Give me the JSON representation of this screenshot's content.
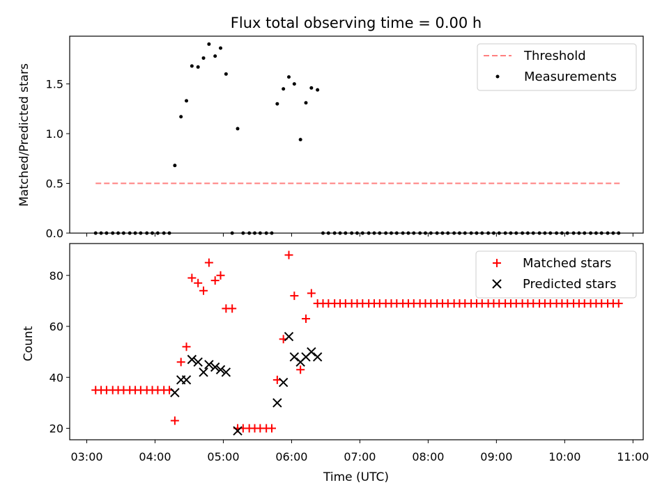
{
  "chart_data": [
    {
      "type": "scatter",
      "title": "Flux total observing time = 0.00 h",
      "ylabel": "Matched/Predicted stars",
      "xlabel": "",
      "ylim": [
        0,
        1.98
      ],
      "xlim": [
        2.75,
        11.15
      ],
      "yticks": [
        {
          "v": 0.0,
          "label": "0.0"
        },
        {
          "v": 0.5,
          "label": "0.5"
        },
        {
          "v": 1.0,
          "label": "1.0"
        },
        {
          "v": 1.5,
          "label": "1.5"
        }
      ],
      "threshold": {
        "name": "Threshold",
        "value": 0.5,
        "x_start": 3.13,
        "x_end": 10.83,
        "color": "#ff7f7f"
      },
      "series": [
        {
          "name": "Measurements",
          "color": "#000000",
          "points": [
            [
              3.13,
              0
            ],
            [
              3.21,
              0
            ],
            [
              3.29,
              0
            ],
            [
              3.38,
              0
            ],
            [
              3.46,
              0
            ],
            [
              3.54,
              0
            ],
            [
              3.63,
              0
            ],
            [
              3.71,
              0
            ],
            [
              3.79,
              0
            ],
            [
              3.88,
              0
            ],
            [
              3.96,
              0
            ],
            [
              4.04,
              0
            ],
            [
              4.13,
              0
            ],
            [
              4.21,
              0
            ],
            [
              4.29,
              0.68
            ],
            [
              4.38,
              1.17
            ],
            [
              4.46,
              1.33
            ],
            [
              4.54,
              1.68
            ],
            [
              4.63,
              1.67
            ],
            [
              4.71,
              1.76
            ],
            [
              4.79,
              1.9
            ],
            [
              4.88,
              1.78
            ],
            [
              4.96,
              1.86
            ],
            [
              5.04,
              1.6
            ],
            [
              5.13,
              0
            ],
            [
              5.21,
              1.05
            ],
            [
              5.29,
              0
            ],
            [
              5.38,
              0
            ],
            [
              5.46,
              0
            ],
            [
              5.54,
              0
            ],
            [
              5.63,
              0
            ],
            [
              5.71,
              0
            ],
            [
              5.79,
              1.3
            ],
            [
              5.88,
              1.45
            ],
            [
              5.96,
              1.57
            ],
            [
              6.04,
              1.5
            ],
            [
              6.13,
              0.94
            ],
            [
              6.21,
              1.31
            ],
            [
              6.29,
              1.46
            ],
            [
              6.38,
              1.44
            ],
            [
              6.46,
              0
            ],
            [
              6.54,
              0
            ],
            [
              6.63,
              0
            ],
            [
              6.71,
              0
            ],
            [
              6.79,
              0
            ],
            [
              6.88,
              0
            ],
            [
              6.96,
              0
            ],
            [
              7.04,
              0
            ],
            [
              7.13,
              0
            ],
            [
              7.21,
              0
            ],
            [
              7.29,
              0
            ],
            [
              7.38,
              0
            ],
            [
              7.46,
              0
            ],
            [
              7.54,
              0
            ],
            [
              7.63,
              0
            ],
            [
              7.71,
              0
            ],
            [
              7.79,
              0
            ],
            [
              7.88,
              0
            ],
            [
              7.96,
              0
            ],
            [
              8.04,
              0
            ],
            [
              8.13,
              0
            ],
            [
              8.21,
              0
            ],
            [
              8.29,
              0
            ],
            [
              8.38,
              0
            ],
            [
              8.46,
              0
            ],
            [
              8.54,
              0
            ],
            [
              8.63,
              0
            ],
            [
              8.71,
              0
            ],
            [
              8.79,
              0
            ],
            [
              8.88,
              0
            ],
            [
              8.96,
              0
            ],
            [
              9.04,
              0
            ],
            [
              9.13,
              0
            ],
            [
              9.21,
              0
            ],
            [
              9.29,
              0
            ],
            [
              9.38,
              0
            ],
            [
              9.46,
              0
            ],
            [
              9.54,
              0
            ],
            [
              9.63,
              0
            ],
            [
              9.71,
              0
            ],
            [
              9.79,
              0
            ],
            [
              9.88,
              0
            ],
            [
              9.96,
              0
            ],
            [
              10.04,
              0
            ],
            [
              10.13,
              0
            ],
            [
              10.21,
              0
            ],
            [
              10.29,
              0
            ],
            [
              10.38,
              0
            ],
            [
              10.46,
              0
            ],
            [
              10.54,
              0
            ],
            [
              10.63,
              0
            ],
            [
              10.71,
              0
            ],
            [
              10.79,
              0
            ]
          ]
        }
      ],
      "legend": {
        "placement": "top-right",
        "entries": [
          "Threshold",
          "Measurements"
        ]
      }
    },
    {
      "type": "scatter",
      "title": "",
      "ylabel": "Count",
      "xlabel": "Time (UTC)",
      "ylim": [
        15.5,
        92.5
      ],
      "xlim": [
        2.75,
        11.15
      ],
      "yticks": [
        {
          "v": 20,
          "label": "20"
        },
        {
          "v": 40,
          "label": "40"
        },
        {
          "v": 60,
          "label": "60"
        },
        {
          "v": 80,
          "label": "80"
        }
      ],
      "xticks": [
        {
          "v": 3,
          "label": "03:00"
        },
        {
          "v": 4,
          "label": "04:00"
        },
        {
          "v": 5,
          "label": "05:00"
        },
        {
          "v": 6,
          "label": "06:00"
        },
        {
          "v": 7,
          "label": "07:00"
        },
        {
          "v": 8,
          "label": "08:00"
        },
        {
          "v": 9,
          "label": "09:00"
        },
        {
          "v": 10,
          "label": "10:00"
        },
        {
          "v": 11,
          "label": "11:00"
        }
      ],
      "series": [
        {
          "name": "Matched stars",
          "marker": "plus",
          "color": "#ff0000",
          "points": [
            [
              3.13,
              35
            ],
            [
              3.21,
              35
            ],
            [
              3.29,
              35
            ],
            [
              3.38,
              35
            ],
            [
              3.46,
              35
            ],
            [
              3.54,
              35
            ],
            [
              3.63,
              35
            ],
            [
              3.71,
              35
            ],
            [
              3.79,
              35
            ],
            [
              3.88,
              35
            ],
            [
              3.96,
              35
            ],
            [
              4.04,
              35
            ],
            [
              4.13,
              35
            ],
            [
              4.21,
              35
            ],
            [
              4.29,
              23
            ],
            [
              4.38,
              46
            ],
            [
              4.46,
              52
            ],
            [
              4.54,
              79
            ],
            [
              4.63,
              77
            ],
            [
              4.71,
              74
            ],
            [
              4.79,
              85
            ],
            [
              4.88,
              78
            ],
            [
              4.96,
              80
            ],
            [
              5.04,
              67
            ],
            [
              5.13,
              67
            ],
            [
              5.21,
              20
            ],
            [
              5.29,
              20
            ],
            [
              5.38,
              20
            ],
            [
              5.46,
              20
            ],
            [
              5.54,
              20
            ],
            [
              5.63,
              20
            ],
            [
              5.71,
              20
            ],
            [
              5.79,
              39
            ],
            [
              5.88,
              55
            ],
            [
              5.96,
              88
            ],
            [
              6.04,
              72
            ],
            [
              6.13,
              43
            ],
            [
              6.21,
              63
            ],
            [
              6.29,
              73
            ],
            [
              6.38,
              69
            ],
            [
              6.46,
              69
            ],
            [
              6.54,
              69
            ],
            [
              6.63,
              69
            ],
            [
              6.71,
              69
            ],
            [
              6.79,
              69
            ],
            [
              6.88,
              69
            ],
            [
              6.96,
              69
            ],
            [
              7.04,
              69
            ],
            [
              7.13,
              69
            ],
            [
              7.21,
              69
            ],
            [
              7.29,
              69
            ],
            [
              7.38,
              69
            ],
            [
              7.46,
              69
            ],
            [
              7.54,
              69
            ],
            [
              7.63,
              69
            ],
            [
              7.71,
              69
            ],
            [
              7.79,
              69
            ],
            [
              7.88,
              69
            ],
            [
              7.96,
              69
            ],
            [
              8.04,
              69
            ],
            [
              8.13,
              69
            ],
            [
              8.21,
              69
            ],
            [
              8.29,
              69
            ],
            [
              8.38,
              69
            ],
            [
              8.46,
              69
            ],
            [
              8.54,
              69
            ],
            [
              8.63,
              69
            ],
            [
              8.71,
              69
            ],
            [
              8.79,
              69
            ],
            [
              8.88,
              69
            ],
            [
              8.96,
              69
            ],
            [
              9.04,
              69
            ],
            [
              9.13,
              69
            ],
            [
              9.21,
              69
            ],
            [
              9.29,
              69
            ],
            [
              9.38,
              69
            ],
            [
              9.46,
              69
            ],
            [
              9.54,
              69
            ],
            [
              9.63,
              69
            ],
            [
              9.71,
              69
            ],
            [
              9.79,
              69
            ],
            [
              9.88,
              69
            ],
            [
              9.96,
              69
            ],
            [
              10.04,
              69
            ],
            [
              10.13,
              69
            ],
            [
              10.21,
              69
            ],
            [
              10.29,
              69
            ],
            [
              10.38,
              69
            ],
            [
              10.46,
              69
            ],
            [
              10.54,
              69
            ],
            [
              10.63,
              69
            ],
            [
              10.71,
              69
            ],
            [
              10.79,
              69
            ]
          ]
        },
        {
          "name": "Predicted stars",
          "marker": "x",
          "color": "#000000",
          "points": [
            [
              4.29,
              34
            ],
            [
              4.38,
              39
            ],
            [
              4.46,
              39
            ],
            [
              4.54,
              47
            ],
            [
              4.63,
              46
            ],
            [
              4.71,
              42
            ],
            [
              4.79,
              45
            ],
            [
              4.88,
              44
            ],
            [
              4.96,
              43
            ],
            [
              5.04,
              42
            ],
            [
              5.21,
              19
            ],
            [
              5.79,
              30
            ],
            [
              5.88,
              38
            ],
            [
              5.96,
              56
            ],
            [
              6.04,
              48
            ],
            [
              6.13,
              46
            ],
            [
              6.21,
              48
            ],
            [
              6.29,
              50
            ],
            [
              6.38,
              48
            ]
          ]
        }
      ],
      "legend": {
        "placement": "top-right",
        "entries": [
          "Matched stars",
          "Predicted stars"
        ]
      }
    }
  ]
}
